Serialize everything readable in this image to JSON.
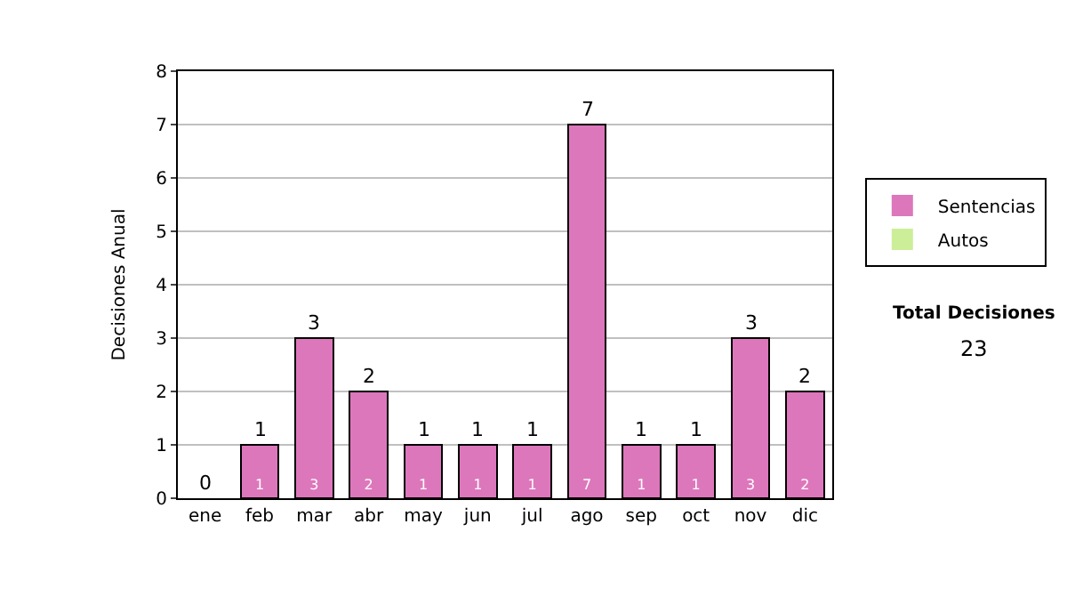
{
  "chart_data": {
    "type": "bar",
    "stacked": true,
    "ylabel": "Decisiones Anual",
    "categories": [
      "ene",
      "feb",
      "mar",
      "abr",
      "may",
      "jun",
      "jul",
      "ago",
      "sep",
      "oct",
      "nov",
      "dic"
    ],
    "series": [
      {
        "name": "Sentencias",
        "color": "#dd77bb",
        "values": [
          0,
          1,
          3,
          2,
          1,
          1,
          1,
          7,
          1,
          1,
          3,
          2
        ],
        "value_labels": [
          null,
          "1",
          "3",
          "2",
          "1",
          "1",
          "1",
          "7",
          "1",
          "1",
          "3",
          "2"
        ]
      },
      {
        "name": "Autos",
        "color": "#ccee99",
        "values": [
          0,
          0,
          0,
          0,
          0,
          0,
          0,
          0,
          0,
          0,
          0,
          0
        ],
        "value_labels": [
          null,
          null,
          null,
          null,
          null,
          null,
          null,
          null,
          null,
          null,
          null,
          null
        ]
      }
    ],
    "totals": [
      "0",
      "1",
      "3",
      "2",
      "1",
      "1",
      "1",
      "7",
      "1",
      "1",
      "3",
      "2"
    ],
    "ylim": [
      0,
      8
    ],
    "yticks": [
      0,
      1,
      2,
      3,
      4,
      5,
      6,
      7,
      8
    ],
    "grid": "y",
    "legend": "right",
    "annotations": [
      "Total Decisiones",
      "23"
    ]
  }
}
